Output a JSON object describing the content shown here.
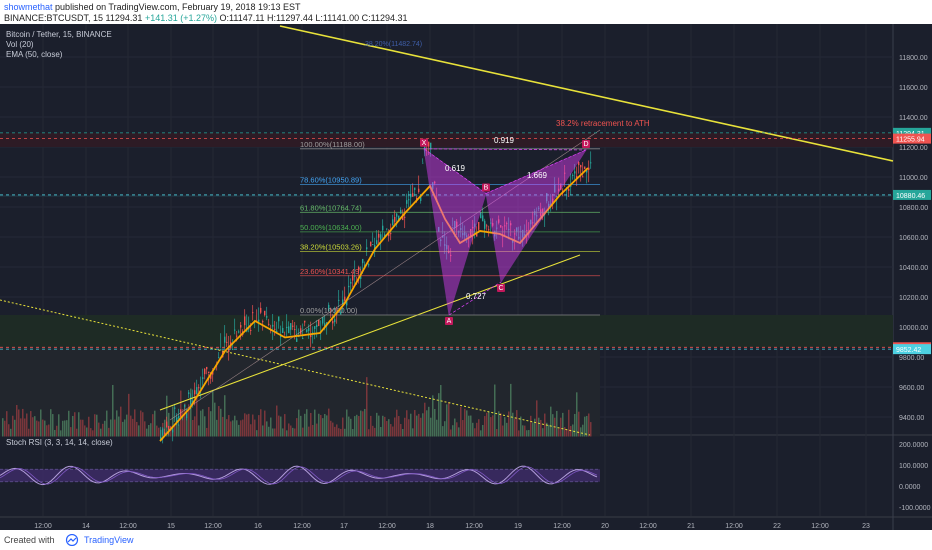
{
  "header": {
    "author": "showmethat",
    "published": "published on TradingView.com, February 19, 2018 19:13 EST",
    "symbol_line_prefix": "BINANCE:BTCUSDT, 15",
    "last": "11294.31",
    "change": "+141.31 (+1.27%)",
    "ohlc": "O:11147.11 H:11297.44 L:11141.00 C:11294.31"
  },
  "legend": {
    "title": "Bitcoin / Tether, 15, BINANCE",
    "vol": "Vol (20)",
    "ema": "EMA (50, close)",
    "stoch": "Stoch RSI (3, 3, 14, 14, close)"
  },
  "footer": {
    "created_with": "Created with",
    "brand": "TradingView"
  },
  "colors": {
    "background": "#1b1f2c",
    "up": "#26a69a",
    "down": "#ef5350",
    "ema": "#f7a600",
    "trendline": "#e8e23a",
    "harmonic": "#e040fb",
    "stoch": "#b39ddb"
  },
  "chart_data": [
    {
      "type": "line",
      "title": "Bitcoin / Tether, 15, BINANCE",
      "y_axis": {
        "ticks": [
          "9400.00",
          "9600.00",
          "9800.00",
          "10000.00",
          "10200.00",
          "10400.00",
          "10600.00",
          "10800.00",
          "11000.00",
          "11200.00",
          "11400.00",
          "11600.00",
          "11800.00"
        ],
        "ylim": [
          9260,
          11900
        ]
      },
      "x_axis": {
        "ticks": [
          "12:00",
          "14",
          "12:00",
          "15",
          "12:00",
          "16",
          "12:00",
          "17",
          "12:00",
          "18",
          "12:00",
          "19",
          "12:00",
          "20",
          "12:00",
          "21",
          "12:00",
          "22",
          "12:00",
          "23"
        ]
      },
      "price_tags": [
        {
          "label": "11294.31",
          "color": "#26a69a"
        },
        {
          "label": "11255.94",
          "color": "#ef5350"
        },
        {
          "label": "10880.46",
          "color": "#26a69a"
        },
        {
          "label": "9864.75",
          "color": "#ef5350"
        },
        {
          "label": "9852.42",
          "color": "#4dd0e1"
        }
      ],
      "ema": [
        {
          "x": 160,
          "y": 9240
        },
        {
          "x": 190,
          "y": 9460
        },
        {
          "x": 225,
          "y": 9840
        },
        {
          "x": 255,
          "y": 10040
        },
        {
          "x": 285,
          "y": 9930
        },
        {
          "x": 320,
          "y": 9960
        },
        {
          "x": 345,
          "y": 10160
        },
        {
          "x": 375,
          "y": 10520
        },
        {
          "x": 405,
          "y": 10760
        },
        {
          "x": 430,
          "y": 10940
        },
        {
          "x": 445,
          "y": 10720
        },
        {
          "x": 460,
          "y": 10560
        },
        {
          "x": 480,
          "y": 10640
        },
        {
          "x": 500,
          "y": 10620
        },
        {
          "x": 520,
          "y": 10560
        },
        {
          "x": 540,
          "y": 10720
        },
        {
          "x": 560,
          "y": 10880
        },
        {
          "x": 588,
          "y": 11060
        }
      ],
      "harmonic_pattern": {
        "points": [
          {
            "label": "X",
            "price": 11188.0
          },
          {
            "label": "A",
            "price": 10080.0
          },
          {
            "label": "B",
            "price": 10890.0
          },
          {
            "label": "C",
            "price": 10300.0
          },
          {
            "label": "D",
            "price": 11180.0
          }
        ],
        "ratios": [
          "0.619",
          "0.727",
          "1.669",
          "0.919"
        ]
      },
      "fib_levels": [
        {
          "label": "100.00%(11188.00)",
          "price": 11188.0,
          "color": "#9e9e9e"
        },
        {
          "label": "78.60%(10950.89)",
          "price": 10950.89,
          "color": "#42a5f5"
        },
        {
          "label": "61.80%(10764.74)",
          "price": 10764.74,
          "color": "#66bb6a"
        },
        {
          "label": "50.00%(10634.00)",
          "price": 10634.0,
          "color": "#4caf50"
        },
        {
          "label": "38.20%(10503.26)",
          "price": 10503.26,
          "color": "#cddc39"
        },
        {
          "label": "23.60%(10341.49)",
          "price": 10341.49,
          "color": "#ef5350"
        },
        {
          "label": "0.00%(10080.00)",
          "price": 10080.0,
          "color": "#9e9e9e"
        }
      ],
      "annotations": [
        "38.2% retracement to ATH",
        "38.20%(11482.74)"
      ]
    },
    {
      "type": "line",
      "title": "Stoch RSI (3, 3, 14, 14, close)",
      "y_axis": {
        "ticks": [
          "200.0000",
          "100.0000",
          "0.0000",
          "-100.0000"
        ],
        "ylim": [
          -125,
          225
        ]
      }
    }
  ]
}
